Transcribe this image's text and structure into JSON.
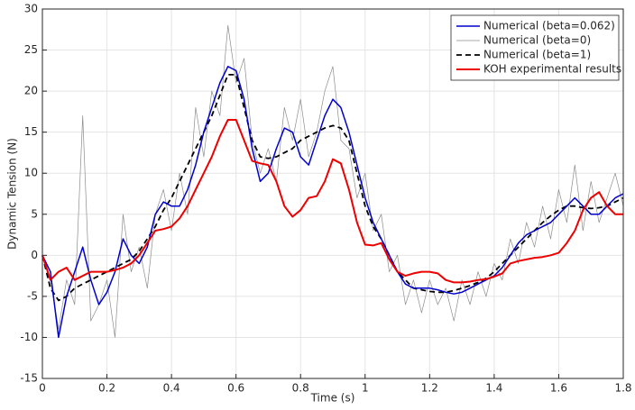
{
  "chart_data": {
    "type": "line",
    "xlabel": "Time (s)",
    "ylabel": "Dynamic Tension (N)",
    "x": [
      0,
      0.025,
      0.05,
      0.075,
      0.1,
      0.125,
      0.15,
      0.175,
      0.2,
      0.225,
      0.25,
      0.275,
      0.3,
      0.325,
      0.35,
      0.375,
      0.4,
      0.425,
      0.45,
      0.475,
      0.5,
      0.525,
      0.55,
      0.575,
      0.6,
      0.625,
      0.65,
      0.675,
      0.7,
      0.725,
      0.75,
      0.775,
      0.8,
      0.825,
      0.85,
      0.875,
      0.9,
      0.925,
      0.95,
      0.975,
      1.0,
      1.025,
      1.05,
      1.075,
      1.1,
      1.125,
      1.15,
      1.175,
      1.2,
      1.225,
      1.25,
      1.275,
      1.3,
      1.325,
      1.35,
      1.375,
      1.4,
      1.425,
      1.45,
      1.475,
      1.5,
      1.525,
      1.55,
      1.575,
      1.6,
      1.625,
      1.65,
      1.675,
      1.7,
      1.725,
      1.75,
      1.775,
      1.8
    ],
    "series": [
      {
        "name": "Numerical (beta=0.062)",
        "color": "#0000cc",
        "width": 1.5,
        "style": "solid",
        "values": [
          0,
          -2,
          -10,
          -5,
          -2,
          1,
          -3,
          -6,
          -4.5,
          -2,
          2,
          0,
          -1,
          1,
          5,
          6.5,
          6,
          6,
          8,
          11,
          15,
          18,
          21,
          23,
          22.5,
          19,
          13,
          9,
          10,
          13,
          15.5,
          15,
          12,
          11,
          14,
          17,
          19,
          18,
          15,
          11,
          7,
          4,
          2,
          0,
          -2,
          -3.5,
          -4,
          -4,
          -4,
          -4.2,
          -4.5,
          -4.7,
          -4.5,
          -4,
          -3.5,
          -3,
          -2.5,
          -1.5,
          0,
          1.5,
          2.5,
          3,
          3.5,
          4,
          5,
          6,
          7,
          6,
          5,
          5,
          6,
          7,
          7.5
        ]
      },
      {
        "name": "Numerical (beta=0)",
        "color": "#8c8c8c",
        "width": 0.7,
        "style": "solid",
        "values": [
          0,
          -3,
          -9,
          -3,
          -6,
          17,
          -8,
          -6,
          -3,
          -10,
          5,
          -2,
          1,
          -4,
          5,
          8,
          3,
          10,
          5,
          18,
          12,
          20,
          17,
          28,
          21,
          24,
          14,
          10,
          13,
          9,
          18,
          14,
          19,
          12,
          15,
          20,
          23,
          14,
          13,
          7,
          10,
          3,
          5,
          -2,
          0,
          -6,
          -3,
          -7,
          -3,
          -6,
          -4,
          -8,
          -3,
          -6,
          -2,
          -5,
          -1,
          -3,
          2,
          -1,
          4,
          1,
          6,
          2,
          8,
          4,
          11,
          3,
          9,
          4,
          7,
          10,
          6
        ]
      },
      {
        "name": "Numerical (beta=1)",
        "color": "#000000",
        "width": 1.8,
        "style": "dashed",
        "values": [
          0,
          -4,
          -5.5,
          -5,
          -4,
          -3.5,
          -3,
          -2.5,
          -2,
          -1.5,
          -1,
          -0.5,
          0.5,
          2,
          3.5,
          5.5,
          7,
          9,
          11,
          13,
          15,
          17,
          19.5,
          22,
          22,
          18,
          14,
          12,
          11.8,
          12,
          12.5,
          13,
          14,
          14.5,
          15,
          15.5,
          15.8,
          15.5,
          14,
          10,
          6,
          3.5,
          2,
          0,
          -2,
          -3,
          -4,
          -4.2,
          -4.4,
          -4.5,
          -4.5,
          -4.3,
          -4,
          -3.7,
          -3.3,
          -2.8,
          -2,
          -1,
          0,
          1,
          2,
          3,
          4,
          4.8,
          5.5,
          6,
          6,
          5.8,
          5.7,
          5.8,
          6,
          6.5,
          7
        ]
      },
      {
        "name": "KOH experimental results",
        "color": "#ee0000",
        "width": 2,
        "style": "solid",
        "values": [
          0,
          -3,
          -2,
          -1.5,
          -3,
          -2.5,
          -2,
          -2,
          -2,
          -1.8,
          -1.5,
          -1,
          0,
          1.5,
          3,
          3.2,
          3.5,
          4.5,
          6,
          8,
          10,
          12,
          14.5,
          16.5,
          16.5,
          14,
          11.5,
          11.2,
          11,
          9,
          6,
          4.7,
          5.5,
          7,
          7.2,
          9,
          11.7,
          11.2,
          8,
          4,
          1.3,
          1.2,
          1.5,
          -0.5,
          -2,
          -2.5,
          -2.2,
          -2,
          -2,
          -2.2,
          -3,
          -3.3,
          -3.3,
          -3.2,
          -3,
          -2.9,
          -2.6,
          -2.2,
          -1,
          -0.7,
          -0.5,
          -0.3,
          -0.2,
          0,
          0.3,
          1.5,
          3,
          5.5,
          7,
          7.7,
          6,
          5,
          5
        ]
      }
    ],
    "xlim": [
      0,
      1.8
    ],
    "xticks": [
      0,
      0.2,
      0.4,
      0.6,
      0.8,
      1,
      1.2,
      1.4,
      1.6,
      1.8
    ],
    "ylim": [
      -15,
      30
    ],
    "yticks": [
      -15,
      -10,
      -5,
      0,
      5,
      10,
      15,
      20,
      25,
      30
    ],
    "grid": true,
    "legend": "northeast"
  }
}
